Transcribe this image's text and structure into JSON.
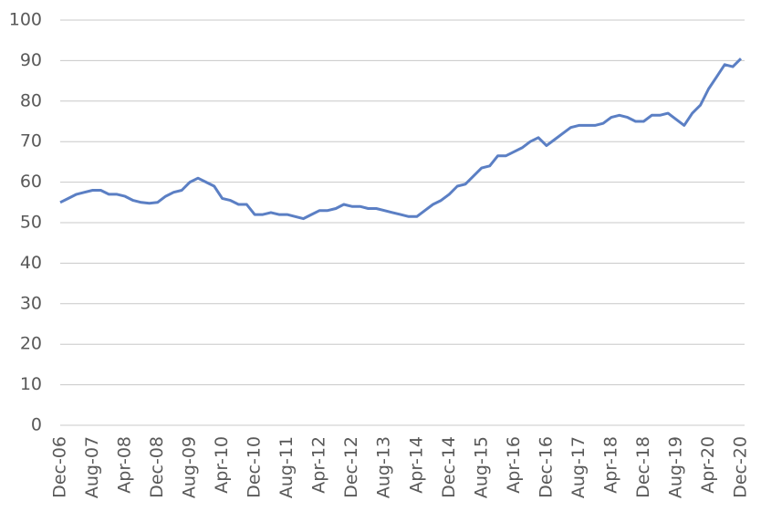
{
  "chart_data": {
    "type": "line",
    "categories": [
      "Dec-06",
      null,
      null,
      null,
      "Aug-07",
      null,
      null,
      null,
      "Apr-08",
      null,
      null,
      null,
      "Dec-08",
      null,
      null,
      null,
      "Aug-09",
      null,
      null,
      null,
      "Apr-10",
      null,
      null,
      null,
      "Dec-10",
      null,
      null,
      null,
      "Aug-11",
      null,
      null,
      null,
      "Apr-12",
      null,
      null,
      null,
      "Dec-12",
      null,
      null,
      null,
      "Aug-13",
      null,
      null,
      null,
      "Apr-14",
      null,
      null,
      null,
      "Dec-14",
      null,
      null,
      null,
      "Aug-15",
      null,
      null,
      null,
      "Apr-16",
      null,
      null,
      null,
      "Dec-16",
      null,
      null,
      null,
      "Aug-17",
      null,
      null,
      null,
      "Apr-18",
      null,
      null,
      null,
      "Dec-18",
      null,
      null,
      null,
      "Aug-19",
      null,
      null,
      null,
      "Apr-20",
      null,
      null,
      null,
      "Dec-20"
    ],
    "values": [
      55,
      56,
      57,
      57.5,
      58,
      58,
      57,
      57,
      56.5,
      55.5,
      55,
      54.8,
      55,
      56.5,
      57.5,
      58,
      60,
      61,
      60,
      59,
      56,
      55.5,
      54.5,
      54.5,
      52,
      52,
      52.5,
      52,
      52,
      51.5,
      51,
      52,
      53,
      53,
      53.5,
      54.5,
      54,
      54,
      53.5,
      53.5,
      53,
      52.5,
      52,
      51.5,
      51.5,
      53,
      54.5,
      55.5,
      57,
      59,
      59.5,
      61.5,
      63.5,
      64,
      66.5,
      66.5,
      67.5,
      68.5,
      70,
      71,
      69,
      70.5,
      72,
      73.5,
      74,
      74,
      74,
      74.5,
      76,
      76.5,
      76,
      75,
      75,
      76.5,
      76.5,
      77,
      75.5,
      74,
      77,
      79,
      83,
      86,
      89,
      88.5,
      90.5
    ],
    "color": "#5b7fc4",
    "ylim": [
      0,
      100
    ],
    "yticks": [
      0,
      10,
      20,
      30,
      40,
      50,
      60,
      70,
      80,
      90,
      100
    ],
    "grid": true
  }
}
